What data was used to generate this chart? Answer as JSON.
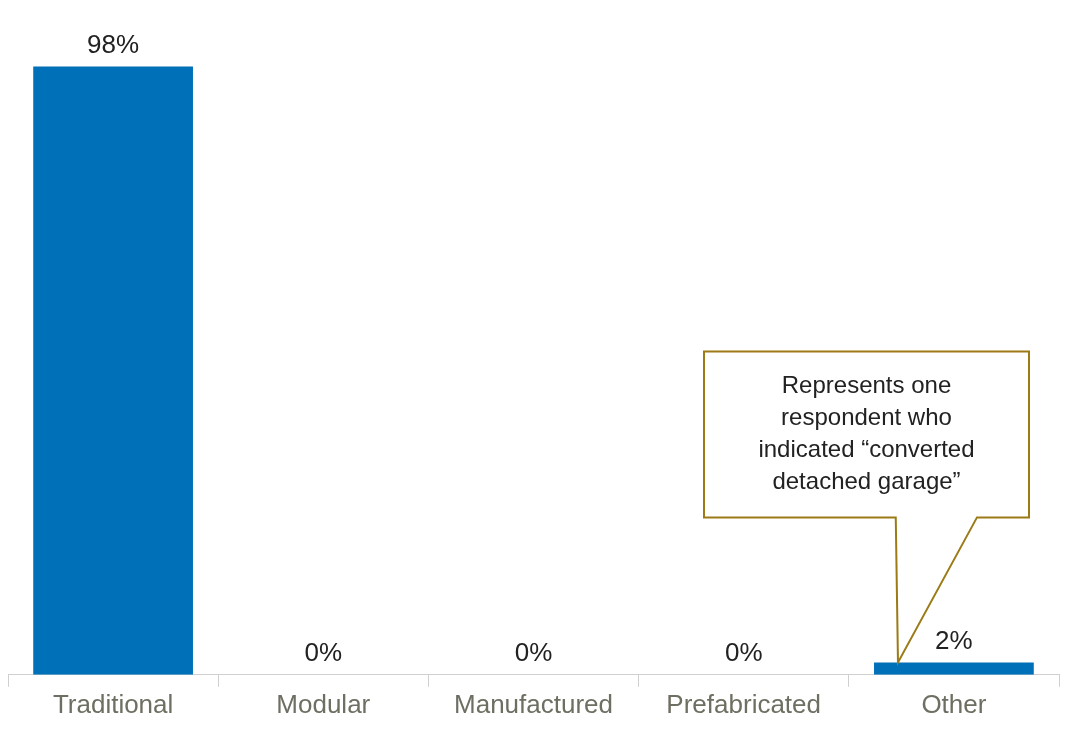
{
  "chart_data": {
    "type": "bar",
    "categories": [
      "Traditional",
      "Modular",
      "Manufactured",
      "Prefabricated",
      "Other"
    ],
    "values": [
      98,
      0,
      0,
      0,
      2
    ],
    "color": "#0070b8",
    "value_labels": [
      "98%",
      "0%",
      "0%",
      "0%",
      "2%"
    ],
    "annotations": [
      "Represents one respondent who indicated “converted detached garage”"
    ],
    "grid": false,
    "legend": false
  }
}
